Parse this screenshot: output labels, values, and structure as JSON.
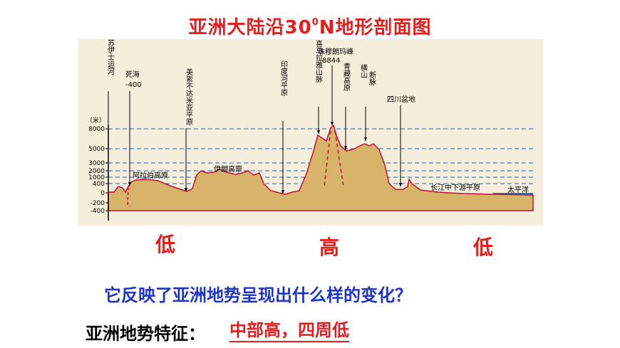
{
  "title": {
    "main": "亚洲大陆沿30",
    "sup": "0",
    "suffix": "N地形剖面图"
  },
  "unit_label": "（米）",
  "y_ticks": [
    "8000",
    "5000",
    "3000",
    "2000",
    "1000",
    "400",
    "0",
    "-200",
    "-400"
  ],
  "places": {
    "suez": "苏伊士运河",
    "dead_sea": "死海",
    "dead_sea_depth": "-400",
    "mesopotamia": "美索不达米亚平原",
    "arabian": "阿拉伯高原",
    "iranian": "伊朗高原",
    "indus": "印度河平原",
    "himalaya": "喜马拉雅山脉",
    "everest": "珠穆朗玛峰",
    "everest_height": "8844",
    "tibet": "青藏高原",
    "hengduan": "横断山脉",
    "sichuan": "四川盆地",
    "yangtze": "长江中下游平原",
    "pacific": "太平洋"
  },
  "markers": {
    "left": "低",
    "middle": "高",
    "right": "低"
  },
  "question": "它反映了亚洲地势呈现出什么样的变化？",
  "feature_label": "亚洲地势特征：",
  "feature_answer": "中部高，四周低",
  "colors": {
    "title": "#e02020",
    "question": "#1f35c0",
    "terrain": "#d8b46a",
    "outline": "#c0103a",
    "sea": "#2a6fc4",
    "dashed": "#1a63b8"
  }
}
